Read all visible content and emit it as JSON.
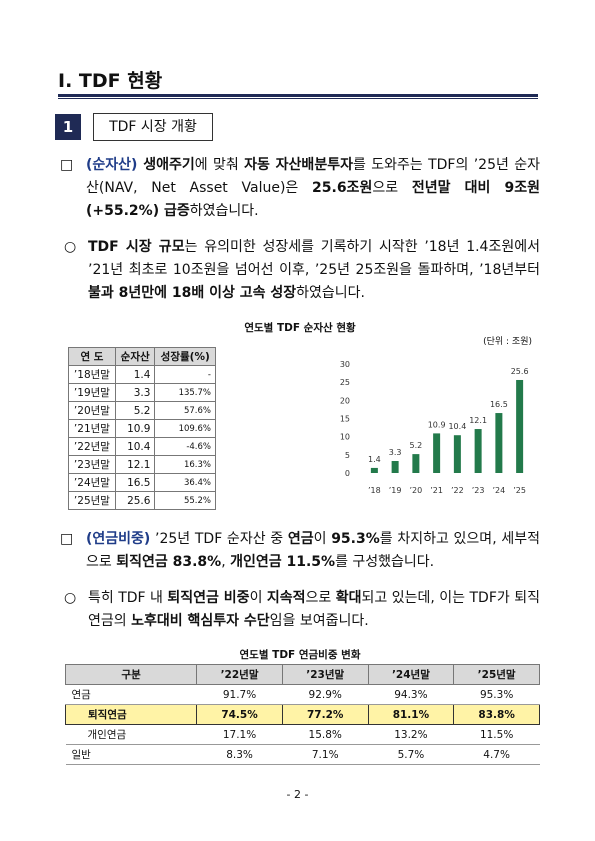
{
  "section_title": "Ⅰ. TDF 현황",
  "subsection": {
    "number": "1",
    "title": "TDF 시장 개황"
  },
  "paragraphs": [
    {
      "marker": "□",
      "runs": [
        {
          "text": "(순자산)",
          "bold": true,
          "color": "#1f3c88"
        },
        {
          "text": " 생애주기",
          "bold": true
        },
        {
          "text": "에 맞춰 "
        },
        {
          "text": "자동 자산배분투자",
          "bold": true
        },
        {
          "text": "를 도와주는 TDF의 ’25년 순자산(NAV, Net Asset Value)은 "
        },
        {
          "text": "25.6조원",
          "bold": true
        },
        {
          "text": "으로 "
        },
        {
          "text": "전년말 대비 9조원(+55.2%) 급증",
          "bold": true
        },
        {
          "text": "하였습니다."
        }
      ]
    },
    {
      "marker": "○",
      "runs": [
        {
          "text": "TDF 시장 규모",
          "bold": true
        },
        {
          "text": "는 유의미한 성장세를 기록하기 시작한 ’18년 1.4조원에서 ’21년 최초로 10조원을 넘어선 이후, ’25년 25조원을 돌파하며, ’18년부터 "
        },
        {
          "text": "불과 8년만에 18배 이상 고속 성장",
          "bold": true
        },
        {
          "text": "하였습니다."
        }
      ]
    },
    {
      "marker": "□",
      "runs": [
        {
          "text": "(연금비중)",
          "bold": true,
          "color": "#1f3c88"
        },
        {
          "text": " ’25년 TDF 순자산 중 "
        },
        {
          "text": "연금",
          "bold": true
        },
        {
          "text": "이 "
        },
        {
          "text": "95.3%",
          "bold": true
        },
        {
          "text": "를 차지하고 있으며, 세부적으로 "
        },
        {
          "text": "퇴직연금 83.8%",
          "bold": true
        },
        {
          "text": ", "
        },
        {
          "text": "개인연금 11.5%",
          "bold": true
        },
        {
          "text": "를 구성했습니다."
        }
      ]
    },
    {
      "marker": "○",
      "runs": [
        {
          "text": "특히 TDF 내 "
        },
        {
          "text": "퇴직연금 비중",
          "bold": true
        },
        {
          "text": "이 "
        },
        {
          "text": "지속적",
          "bold": true
        },
        {
          "text": "으로 "
        },
        {
          "text": "확대",
          "bold": true
        },
        {
          "text": "되고 있는데, 이는 TDF가 퇴직연금의 "
        },
        {
          "text": "노후대비 핵심투자 수단",
          "bold": true
        },
        {
          "text": "임을 보여줍니다."
        }
      ]
    }
  ],
  "table1": {
    "title": "연도별 TDF 순자산 현황",
    "unit": "(단위 : 조원)",
    "headers": [
      "연 도",
      "순자산",
      "성장률(%)"
    ],
    "rows": [
      [
        "’18년말",
        "1.4",
        "-"
      ],
      [
        "’19년말",
        "3.3",
        "135.7%"
      ],
      [
        "’20년말",
        "5.2",
        "57.6%"
      ],
      [
        "’21년말",
        "10.9",
        "109.6%"
      ],
      [
        "’22년말",
        "10.4",
        "-4.6%"
      ],
      [
        "’23년말",
        "12.1",
        "16.3%"
      ],
      [
        "’24년말",
        "16.5",
        "36.4%"
      ],
      [
        "’25년말",
        "25.6",
        "55.2%"
      ]
    ]
  },
  "chart_data": {
    "type": "bar",
    "categories": [
      "’18",
      "’19",
      "’20",
      "’21",
      "’22",
      "’23",
      "’24",
      "’25"
    ],
    "values": [
      1.4,
      3.3,
      5.2,
      10.9,
      10.4,
      12.1,
      16.5,
      25.6
    ],
    "color": "#237a4b",
    "ylim": [
      0,
      30
    ],
    "yticks": [
      0,
      5,
      10,
      15,
      20,
      25,
      30
    ],
    "grid": false
  },
  "table2": {
    "title": "연도별 TDF 연금비중 변화",
    "headers": [
      "구분",
      "’22년말",
      "’23년말",
      "’24년말",
      "’25년말"
    ],
    "rows": [
      [
        "연금",
        "91.7%",
        "92.9%",
        "94.3%",
        "95.3%"
      ],
      [
        "퇴직연금",
        "74.5%",
        "77.2%",
        "81.1%",
        "83.8%"
      ],
      [
        "개인연금",
        "17.1%",
        "15.8%",
        "13.2%",
        "11.5%"
      ],
      [
        "일반",
        "8.3%",
        "7.1%",
        "5.7%",
        "4.7%"
      ]
    ]
  },
  "footer": "- 2 -"
}
